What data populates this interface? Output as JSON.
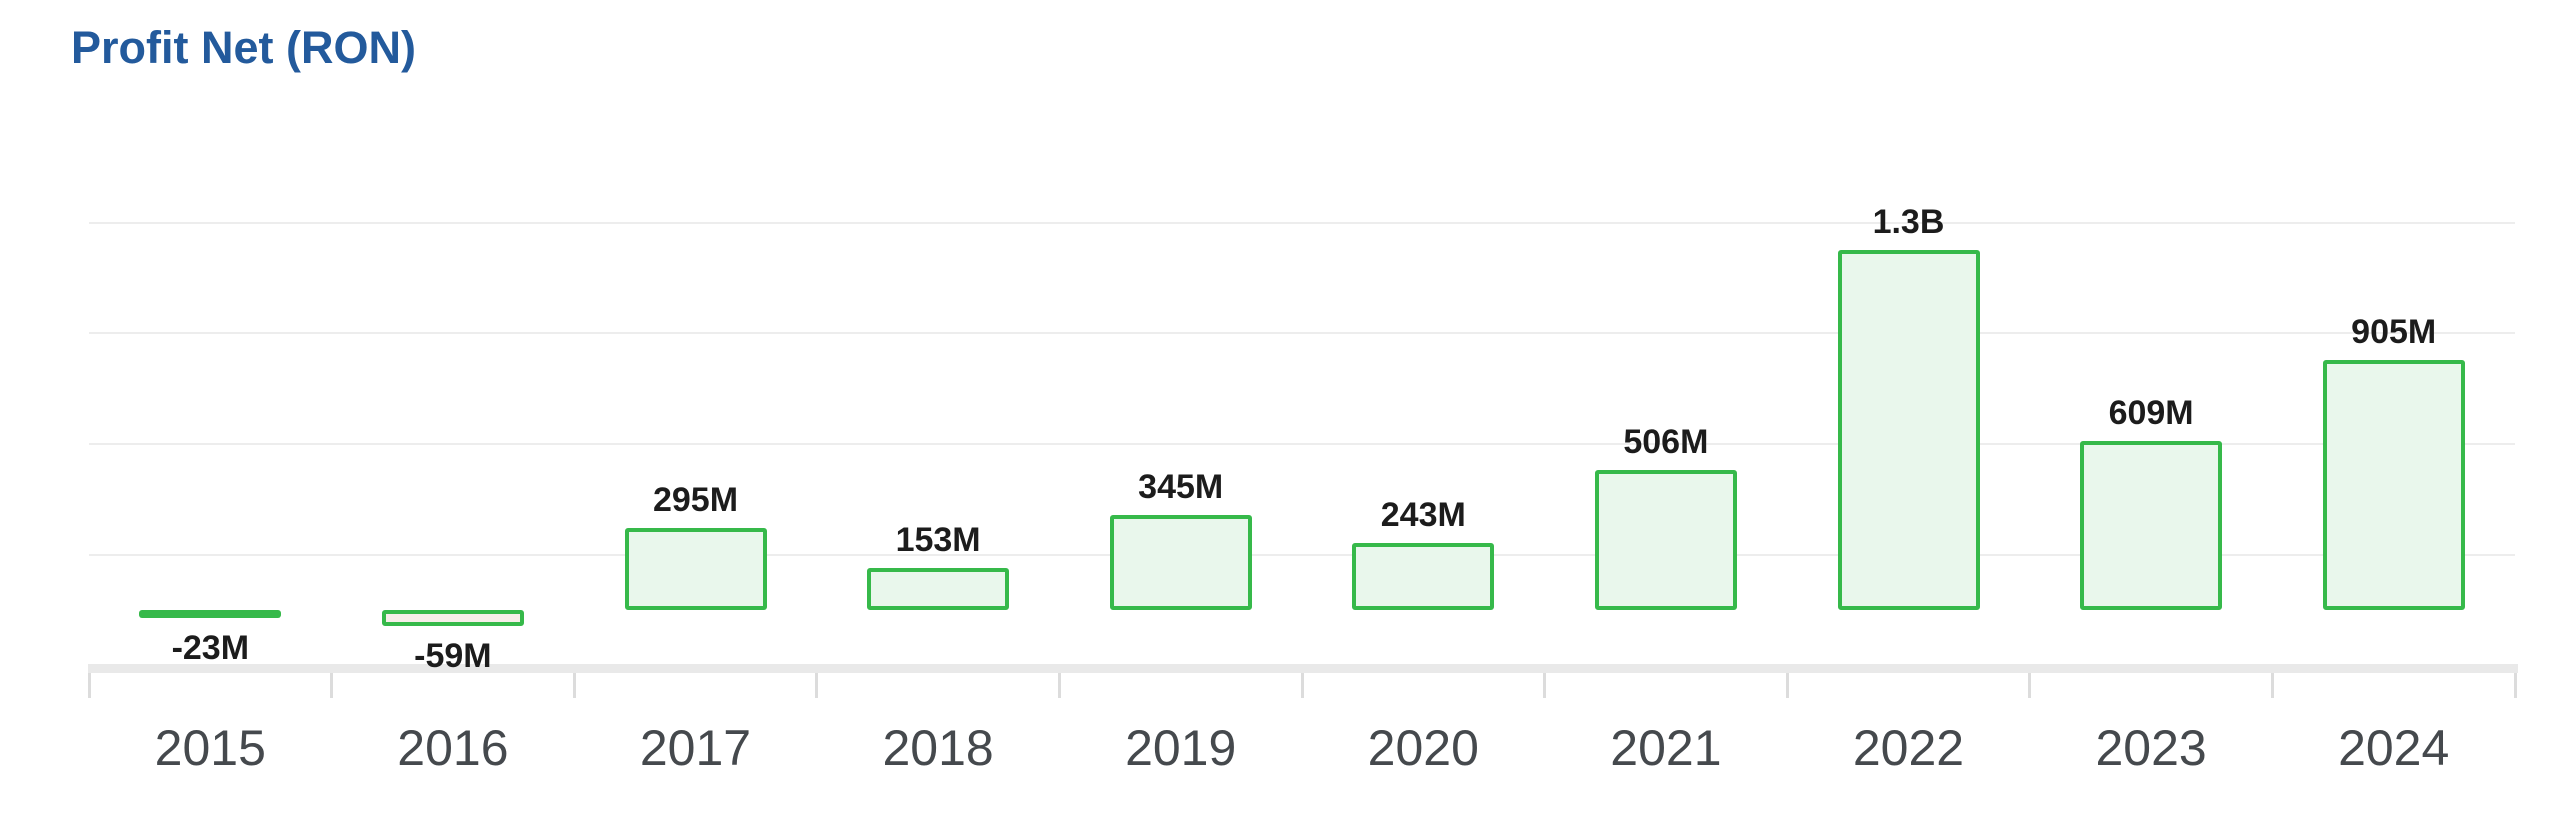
{
  "chart_data": {
    "type": "bar",
    "title": "Profit Net (RON)",
    "currency": "RON",
    "categories": [
      "2015",
      "2016",
      "2017",
      "2018",
      "2019",
      "2020",
      "2021",
      "2022",
      "2023",
      "2024"
    ],
    "points": [
      {
        "year": "2015",
        "value_mln": -23,
        "label": "-23M"
      },
      {
        "year": "2016",
        "value_mln": -59,
        "label": "-59M"
      },
      {
        "year": "2017",
        "value_mln": 295,
        "label": "295M"
      },
      {
        "year": "2018",
        "value_mln": 153,
        "label": "153M"
      },
      {
        "year": "2019",
        "value_mln": 345,
        "label": "345M"
      },
      {
        "year": "2020",
        "value_mln": 243,
        "label": "243M"
      },
      {
        "year": "2021",
        "value_mln": 506,
        "label": "506M"
      },
      {
        "year": "2022",
        "value_mln": 1300,
        "label": "1.3B"
      },
      {
        "year": "2023",
        "value_mln": 609,
        "label": "609M"
      },
      {
        "year": "2024",
        "value_mln": 905,
        "label": "905M"
      }
    ],
    "xlabel": "",
    "ylabel": "",
    "y_axis": {
      "tick_labels_visible": false,
      "ylim_mln": [
        -100,
        1450
      ],
      "gridline_values_mln": [
        200,
        600,
        1000,
        1400
      ],
      "grid": true
    },
    "x_axis": {
      "line_visible": true,
      "ticks_between_categories": true
    },
    "legend": "none",
    "value_label_position": "outside-end",
    "colors": {
      "title": "#235a9c",
      "bar_border": "#36b94a",
      "bar_fill_positive": "#e9f7ec",
      "bar_fill_negative": "#f7eee9",
      "value_label": "#1c1c1c",
      "year_label": "#45494d",
      "gridline": "#ededed",
      "axis_line": "#e9e9e9",
      "tick": "#dcdcdc",
      "background": "#ffffff"
    }
  }
}
